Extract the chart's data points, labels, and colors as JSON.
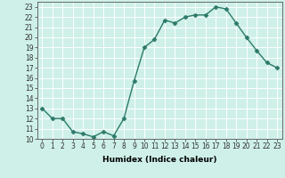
{
  "x": [
    0,
    1,
    2,
    3,
    4,
    5,
    6,
    7,
    8,
    9,
    10,
    11,
    12,
    13,
    14,
    15,
    16,
    17,
    18,
    19,
    20,
    21,
    22,
    23
  ],
  "y": [
    13,
    12,
    12,
    10.7,
    10.5,
    10.2,
    10.7,
    10.3,
    12,
    15.7,
    19,
    19.8,
    21.7,
    21.4,
    22,
    22.2,
    22.2,
    23,
    22.8,
    21.4,
    20,
    18.7,
    17.5,
    17
  ],
  "line_color": "#2d7a6a",
  "marker": "D",
  "markersize": 2.5,
  "bg_color": "#cef0e8",
  "grid_color": "#b0ddd5",
  "xlabel": "Humidex (Indice chaleur)",
  "ylim": [
    10,
    23.5
  ],
  "xlim": [
    -0.5,
    23.5
  ],
  "yticks": [
    10,
    11,
    12,
    13,
    14,
    15,
    16,
    17,
    18,
    19,
    20,
    21,
    22,
    23
  ],
  "xticks": [
    0,
    1,
    2,
    3,
    4,
    5,
    6,
    7,
    8,
    9,
    10,
    11,
    12,
    13,
    14,
    15,
    16,
    17,
    18,
    19,
    20,
    21,
    22,
    23
  ],
  "label_fontsize": 6.5,
  "tick_fontsize": 5.5,
  "linewidth": 1.0
}
